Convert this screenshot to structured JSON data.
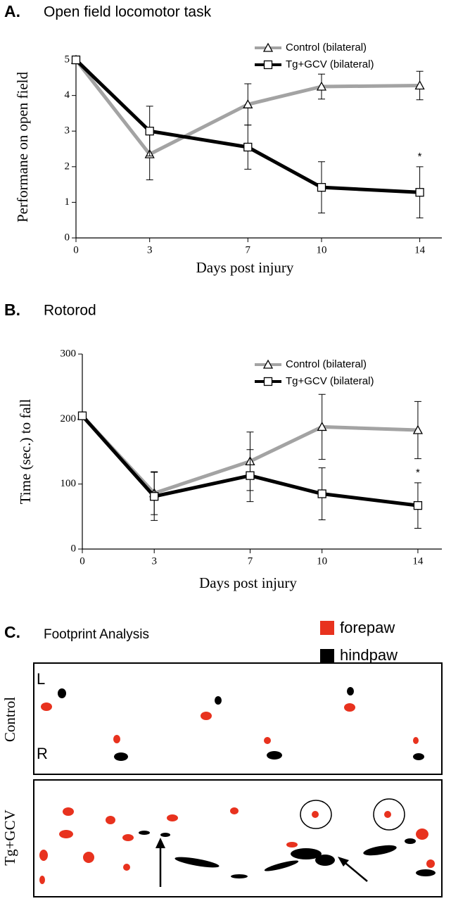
{
  "chart_data": [
    {
      "type": "line",
      "panel_label": "A.",
      "title": "Open field locomotor task",
      "x_label": "Days post injury",
      "y_label": "Performane on open field",
      "x": [
        0,
        3,
        7,
        10,
        14
      ],
      "xlim": [
        0,
        14.9
      ],
      "xticks": [
        0,
        3,
        7,
        10,
        14
      ],
      "ylim": [
        0,
        5.1
      ],
      "yticks": [
        0,
        1,
        2,
        3,
        4,
        5
      ],
      "legend": "upper right",
      "series": [
        {
          "name": "Control (bilateral)",
          "color": "#a3a3a3",
          "marker": "triangle",
          "values": [
            5,
            2.35,
            3.75,
            4.25,
            4.28
          ],
          "errors": [
            0,
            0.72,
            0.58,
            0.35,
            0.4
          ]
        },
        {
          "name": "Tg+GCV (bilateral)",
          "color": "#000000",
          "marker": "square",
          "values": [
            5,
            3.0,
            2.55,
            1.42,
            1.28
          ],
          "errors": [
            0,
            0.7,
            0.62,
            0.72,
            0.72
          ]
        }
      ],
      "annotations": [
        {
          "text": "*",
          "x": 14
        }
      ]
    },
    {
      "type": "line",
      "panel_label": "B.",
      "title": "Rotorod",
      "x_label": "Days post injury",
      "y_label": "Time (sec.) to fall",
      "x": [
        0,
        3,
        7,
        10,
        14
      ],
      "xlim": [
        0,
        15
      ],
      "xticks": [
        0,
        3,
        7,
        10,
        14
      ],
      "ylim": [
        0,
        300
      ],
      "yticks": [
        0,
        100,
        200,
        300
      ],
      "legend": "upper right",
      "series": [
        {
          "name": "Control (bilateral)",
          "color": "#a3a3a3",
          "marker": "triangle",
          "values": [
            205,
            86,
            135,
            188,
            183
          ],
          "errors": [
            0,
            33,
            45,
            50,
            44
          ]
        },
        {
          "name": "Tg+GCV (bilateral)",
          "color": "#000000",
          "marker": "square",
          "values": [
            205,
            81,
            113,
            85,
            67
          ],
          "errors": [
            0,
            37,
            40,
            40,
            35
          ]
        }
      ],
      "annotations": [
        {
          "text": "*",
          "x": 14
        }
      ]
    }
  ],
  "panel_c": {
    "panel_label": "C.",
    "title": "Footprint Analysis",
    "legend": [
      {
        "name": "forepaw",
        "color": "#e8321e"
      },
      {
        "name": "hindpaw",
        "color": "#000000"
      }
    ],
    "rows": [
      {
        "label": "Control",
        "sides": [
          "L",
          "R"
        ]
      },
      {
        "label": "Tg+GCV"
      }
    ]
  }
}
